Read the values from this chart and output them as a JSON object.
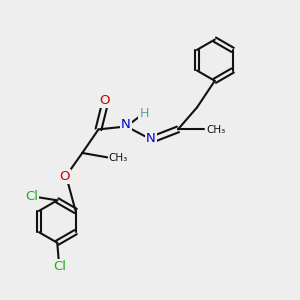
{
  "bg_color": "#eeeeee",
  "bond_color": "#111111",
  "bond_width": 1.5,
  "N_color": "#0000cc",
  "O_color": "#cc0000",
  "Cl_color": "#22aa22",
  "H_color": "#5f9ea0",
  "figsize": [
    3.0,
    3.0
  ],
  "dpi": 100,
  "xlim": [
    0,
    10
  ],
  "ylim": [
    0,
    10
  ]
}
